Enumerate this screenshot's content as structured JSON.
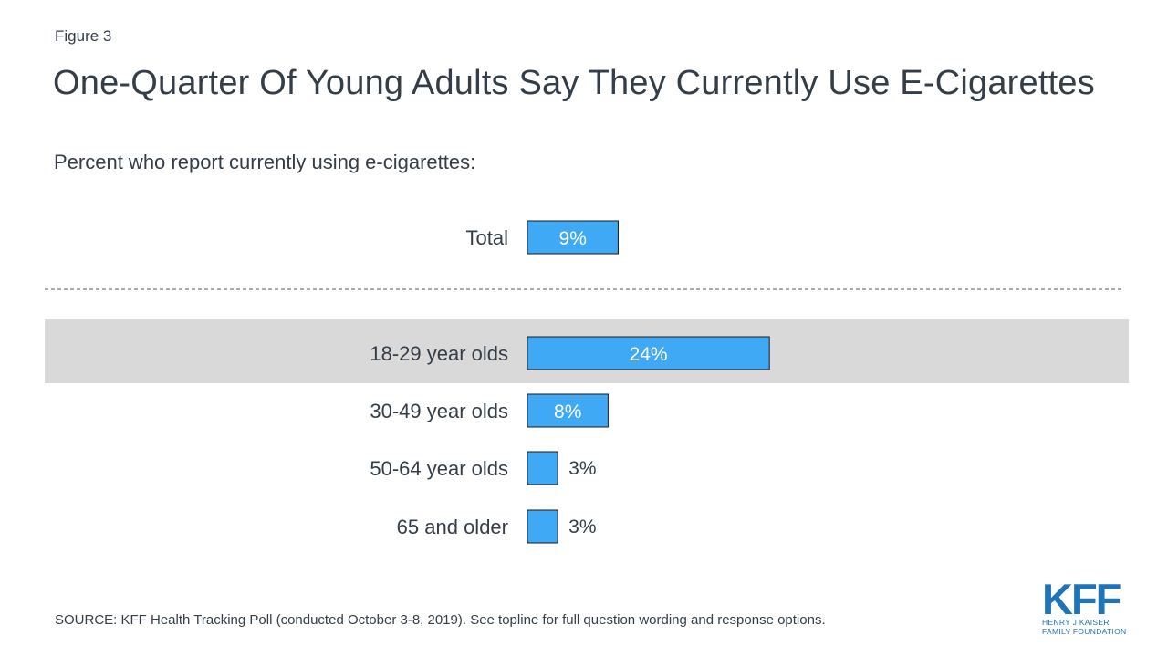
{
  "figure_label": "Figure 3",
  "title": "One-Quarter Of Young Adults Say They Currently Use E-Cigarettes",
  "subtitle": "Percent who report currently using e-cigarettes:",
  "source": "SOURCE: KFF Health Tracking Poll (conducted October 3-8, 2019). See topline for full question wording and response options.",
  "logo": {
    "word": "KFF",
    "line1": "HENRY J KAISER",
    "line2": "FAMILY FOUNDATION"
  },
  "colors": {
    "bar": "#3fa9f5",
    "bar_stroke": "#1a1a1a",
    "highlight_band": "#d9d9d9",
    "text": "#333e48",
    "brand": "#1f73b7"
  },
  "chart_data": {
    "type": "bar",
    "orientation": "horizontal",
    "categories": [
      "Total",
      "18-29 year olds",
      "30-49 year olds",
      "50-64 year olds",
      "65 and older"
    ],
    "values": [
      9,
      24,
      8,
      3,
      3
    ],
    "data_labels": [
      "9%",
      "24%",
      "8%",
      "3%",
      "3%"
    ],
    "highlighted_category": "18-29 year olds",
    "separator_after": "Total",
    "xlim": [
      0,
      30
    ],
    "grid": false
  }
}
